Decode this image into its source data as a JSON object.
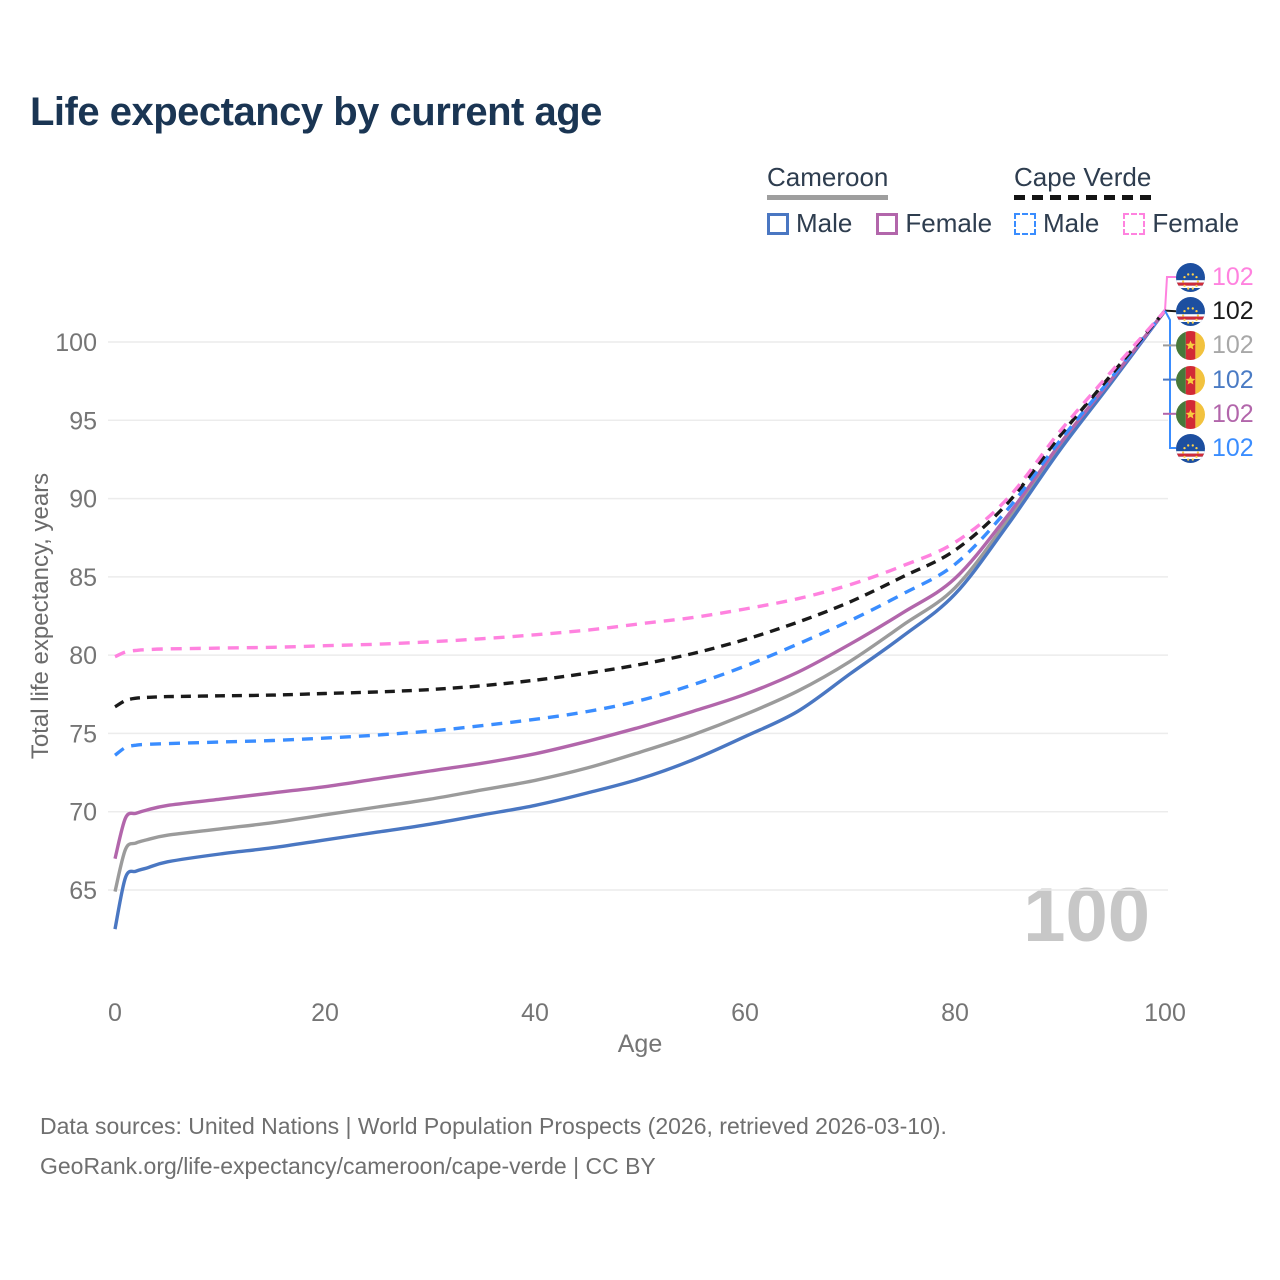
{
  "title": "Life expectancy by current age",
  "legend": {
    "groups": [
      {
        "name": "Cameroon",
        "underline_style": "solid",
        "underline_color": "#9e9e9e",
        "items": [
          {
            "label": "Male",
            "color": "#4a77c2",
            "line_style": "solid"
          },
          {
            "label": "Female",
            "color": "#b266ab",
            "line_style": "solid"
          }
        ]
      },
      {
        "name": "Cape Verde",
        "underline_style": "dashed",
        "underline_color": "#141414",
        "items": [
          {
            "label": "Male",
            "color": "#3a8dff",
            "line_style": "dashed"
          },
          {
            "label": "Female",
            "color": "#ff82df",
            "line_style": "dashed"
          }
        ]
      }
    ]
  },
  "chart_data": {
    "type": "line",
    "title": "Life expectancy by current age",
    "xlabel": "Age",
    "ylabel": "Total life expectancy, years",
    "xlim": [
      0,
      100
    ],
    "ylim": [
      62,
      103
    ],
    "x_ticks": [
      0,
      20,
      40,
      60,
      80,
      100
    ],
    "y_ticks": [
      65,
      70,
      75,
      80,
      85,
      90,
      95,
      100
    ],
    "grid": "horizontal-only",
    "legend_position": "top-right",
    "watermark": "100",
    "ages": [
      0,
      1,
      2,
      3,
      5,
      10,
      15,
      20,
      25,
      30,
      35,
      40,
      45,
      50,
      55,
      60,
      65,
      70,
      75,
      80,
      85,
      90,
      95,
      100
    ],
    "series": [
      {
        "id": "cameroon-both",
        "name": "Cameroon",
        "country": "Cameroon",
        "sex": "Both",
        "style": "solid",
        "color": "#9b9b9b",
        "end_value": 102,
        "values": [
          64.9,
          67.6,
          68.0,
          68.2,
          68.5,
          68.9,
          69.3,
          69.8,
          70.3,
          70.8,
          71.4,
          72.0,
          72.8,
          73.8,
          74.9,
          76.2,
          77.7,
          79.6,
          81.9,
          84.3,
          88.6,
          93.3,
          97.6,
          102
        ]
      },
      {
        "id": "cameroon-male",
        "name": "Cameroon Male",
        "country": "Cameroon",
        "sex": "Male",
        "style": "solid",
        "color": "#4a77c2",
        "end_value": 102,
        "values": [
          62.5,
          65.8,
          66.2,
          66.4,
          66.8,
          67.3,
          67.7,
          68.2,
          68.7,
          69.2,
          69.8,
          70.4,
          71.2,
          72.1,
          73.3,
          74.8,
          76.4,
          78.8,
          81.2,
          83.9,
          88.3,
          93.1,
          97.5,
          102
        ]
      },
      {
        "id": "cameroon-female",
        "name": "Cameroon Female",
        "country": "Cameroon",
        "sex": "Female",
        "style": "solid",
        "color": "#b266ab",
        "end_value": 102,
        "values": [
          67.0,
          69.6,
          69.9,
          70.1,
          70.4,
          70.8,
          71.2,
          71.6,
          72.1,
          72.6,
          73.1,
          73.7,
          74.5,
          75.4,
          76.4,
          77.5,
          78.9,
          80.7,
          82.7,
          84.9,
          88.9,
          93.5,
          97.7,
          102
        ]
      },
      {
        "id": "capeverde-male",
        "name": "Cape Verde Male",
        "country": "Cape Verde",
        "sex": "Male",
        "style": "dashed",
        "color": "#3a8dff",
        "end_value": 102,
        "values": [
          73.6,
          74.1,
          74.25,
          74.3,
          74.35,
          74.45,
          74.55,
          74.7,
          74.9,
          75.15,
          75.5,
          75.9,
          76.4,
          77.1,
          78.1,
          79.3,
          80.7,
          82.2,
          83.9,
          85.8,
          89.3,
          93.7,
          97.8,
          102
        ]
      },
      {
        "id": "capeverde-both",
        "name": "Cape Verde",
        "country": "Cape Verde",
        "sex": "Both",
        "style": "dashed",
        "color": "#1a1a1a",
        "end_value": 102,
        "values": [
          76.7,
          77.1,
          77.25,
          77.3,
          77.35,
          77.4,
          77.45,
          77.55,
          77.65,
          77.8,
          78.05,
          78.4,
          78.85,
          79.4,
          80.1,
          81.0,
          82.1,
          83.4,
          85.0,
          86.7,
          89.7,
          94.0,
          98.0,
          102
        ]
      },
      {
        "id": "capeverde-female",
        "name": "Cape Verde Female",
        "country": "Cape Verde",
        "sex": "Female",
        "style": "dashed",
        "color": "#ff82df",
        "end_value": 102,
        "values": [
          79.9,
          80.2,
          80.3,
          80.35,
          80.4,
          80.45,
          80.5,
          80.6,
          80.7,
          80.85,
          81.05,
          81.3,
          81.6,
          82.0,
          82.4,
          82.95,
          83.6,
          84.5,
          85.7,
          87.2,
          90.0,
          94.3,
          98.2,
          102
        ]
      }
    ]
  },
  "right_labels": [
    {
      "flag": "cape-verde",
      "series": "capeverde-female",
      "value": "102",
      "color": "#ff82df"
    },
    {
      "flag": "cape-verde",
      "series": "capeverde-both",
      "value": "102",
      "color": "#1a1a1a"
    },
    {
      "flag": "cameroon",
      "series": "cameroon-both",
      "value": "102",
      "color": "#a8a8a8"
    },
    {
      "flag": "cameroon",
      "series": "cameroon-male",
      "value": "102",
      "color": "#4a7bc4"
    },
    {
      "flag": "cameroon",
      "series": "cameroon-female",
      "value": "102",
      "color": "#b266ab"
    },
    {
      "flag": "cape-verde",
      "series": "capeverde-male",
      "value": "102",
      "color": "#3a8dff"
    }
  ],
  "footer": {
    "line1": "Data sources: United Nations | World Population Prospects (2026, retrieved 2026-03-10).",
    "line2": "GeoRank.org/life-expectancy/cameroon/cape-verde | CC BY"
  }
}
